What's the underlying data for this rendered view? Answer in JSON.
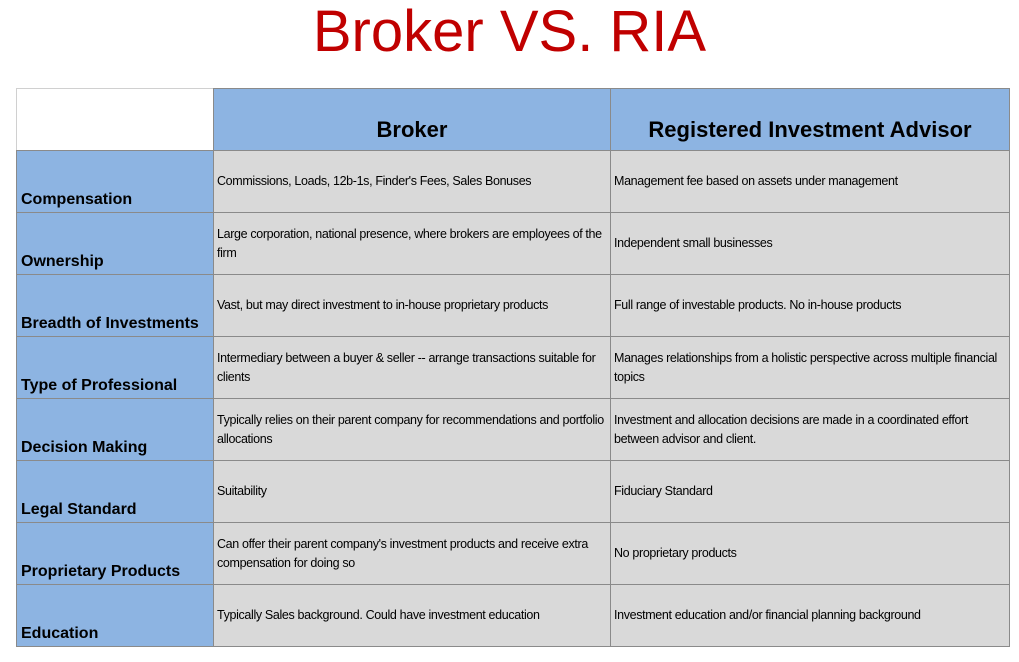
{
  "title": "Broker VS. RIA",
  "table": {
    "columns": [
      "",
      "Broker",
      "Registered Investment Advisor"
    ],
    "rows": [
      {
        "label": "Compensation",
        "broker": "Commissions, Loads, 12b-1s, Finder's Fees, Sales Bonuses",
        "ria": "Management fee based on assets under management"
      },
      {
        "label": "Ownership",
        "broker": "Large corporation, national presence, where brokers are employees of the firm",
        "ria": "Independent small businesses"
      },
      {
        "label": "Breadth of Investments",
        "broker": "Vast, but may direct investment to in-house proprietary products",
        "ria": "Full range of investable products.  No in-house products"
      },
      {
        "label": "Type of Professional",
        "broker": "Intermediary between a buyer & seller -- arrange transactions suitable for clients",
        "ria": "Manages relationships from a holistic perspective across multiple financial topics"
      },
      {
        "label": "Decision Making",
        "broker": "Typically relies on their parent company for recommendations and portfolio allocations",
        "ria": "Investment and allocation decisions are made in a coordinated effort between advisor and client."
      },
      {
        "label": "Legal Standard",
        "broker": "Suitability",
        "ria": "Fiduciary Standard"
      },
      {
        "label": "Proprietary Products",
        "broker": "Can offer their parent company's investment products and receive extra compensation for doing so",
        "ria": "No proprietary products"
      },
      {
        "label": "Education",
        "broker": "Typically Sales background. Could have investment education",
        "ria": "Investment education and/or financial planning background"
      }
    ]
  },
  "colors": {
    "title": "#c00000",
    "header_fill": "#8db4e2",
    "cell_fill": "#d9d9d9",
    "border": "#8a8a8a"
  }
}
